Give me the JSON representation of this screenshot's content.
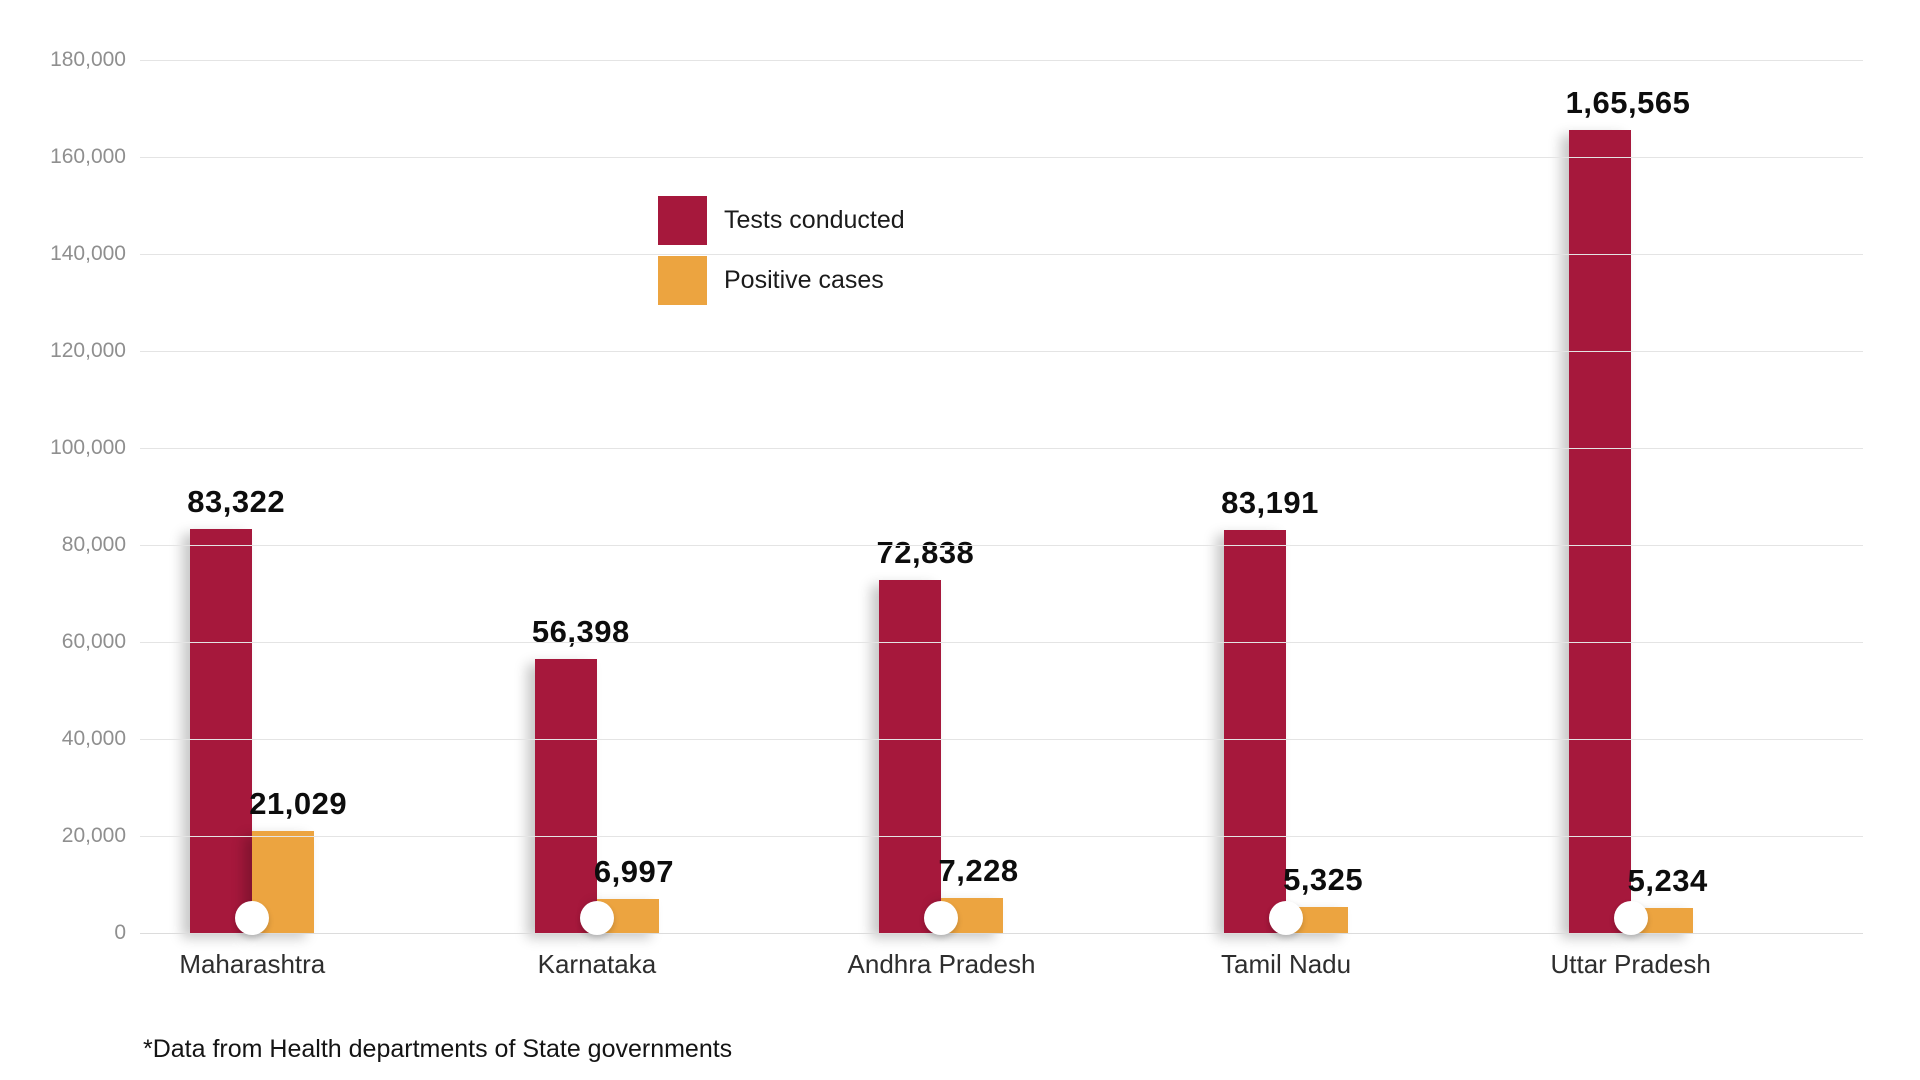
{
  "chart_data": {
    "type": "bar",
    "title": "",
    "xlabel": "",
    "ylabel": "",
    "grid": true,
    "legend_position": "top-center-left",
    "categories": [
      "Maharashtra",
      "Karnataka",
      "Andhra Pradesh",
      "Tamil Nadu",
      "Uttar Pradesh"
    ],
    "series": [
      {
        "name": "Tests conducted",
        "color": "#a6183c",
        "values": [
          83322,
          56398,
          72838,
          83191,
          165565
        ],
        "labels": [
          "83,322",
          "56,398",
          "72,838",
          "83,191",
          "1,65,565"
        ]
      },
      {
        "name": "Positive cases",
        "color": "#eca440",
        "values": [
          21029,
          6997,
          7228,
          5325,
          5234
        ],
        "labels": [
          "21,029",
          "6,997",
          "7,228",
          "5,325",
          "5,234"
        ]
      }
    ],
    "ylim": [
      0,
      180000
    ],
    "ytick_step": 20000,
    "ytick_labels": [
      "0",
      "20,000",
      "40,000",
      "60,000",
      "80,000",
      "100,000",
      "120,000",
      "140,000",
      "160,000",
      "180,000"
    ],
    "footnote": "*Data from Health departments of State governments"
  }
}
